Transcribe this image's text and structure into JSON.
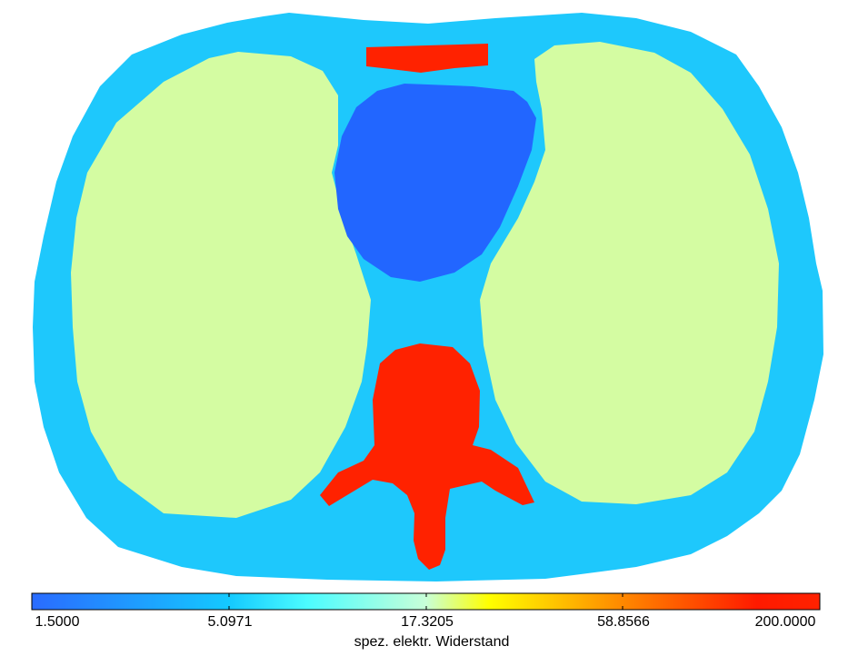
{
  "colors": {
    "background": "#ffffff",
    "tissue": "#1ec8fc",
    "lung": "#d4fca2",
    "heart": "#2266ff",
    "bone": "#ff2200",
    "outline": "#000000"
  },
  "colorbar": {
    "title": "spez. elektr. Widerstand",
    "ticks": [
      "1.5000",
      "5.0971",
      "17.3205",
      "58.8566",
      "200.0000"
    ],
    "gradient_stops": [
      "#2a6bff",
      "#14c9ff",
      "#4cfcff",
      "#ffff00",
      "#ff8800",
      "#ff1a00",
      "#ff2200"
    ]
  }
}
